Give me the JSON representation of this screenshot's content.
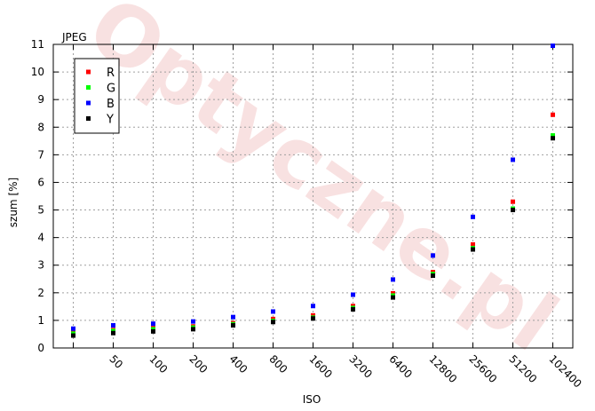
{
  "chart_data": {
    "type": "scatter",
    "title": "JPEG",
    "xlabel": "ISO",
    "ylabel": "szum [%]",
    "categories": [
      "",
      "50",
      "100",
      "200",
      "400",
      "800",
      "1600",
      "3200",
      "6400",
      "12800",
      "25600",
      "51200",
      "102400"
    ],
    "ylim": [
      0,
      11
    ],
    "yticks": [
      0,
      1,
      2,
      3,
      4,
      5,
      6,
      7,
      8,
      9,
      10,
      11
    ],
    "grid": true,
    "legend_position": "top-left",
    "watermark": "Optyczne.pl",
    "series": [
      {
        "name": "R",
        "color": "#ff0000",
        "values": [
          0.55,
          0.65,
          0.72,
          0.78,
          0.9,
          1.05,
          1.18,
          1.52,
          1.98,
          2.75,
          3.75,
          5.3,
          8.45
        ]
      },
      {
        "name": "G",
        "color": "#00ff00",
        "values": [
          0.52,
          0.62,
          0.68,
          0.74,
          0.86,
          0.98,
          1.1,
          1.45,
          1.9,
          2.68,
          3.62,
          5.05,
          7.7
        ]
      },
      {
        "name": "B",
        "color": "#0000ff",
        "values": [
          0.7,
          0.82,
          0.88,
          0.96,
          1.12,
          1.32,
          1.52,
          1.93,
          2.48,
          3.35,
          4.75,
          6.82,
          10.95
        ]
      },
      {
        "name": "Y",
        "color": "#000000",
        "values": [
          0.45,
          0.54,
          0.6,
          0.68,
          0.82,
          0.94,
          1.07,
          1.4,
          1.83,
          2.62,
          3.57,
          5.0,
          7.6
        ]
      }
    ]
  }
}
